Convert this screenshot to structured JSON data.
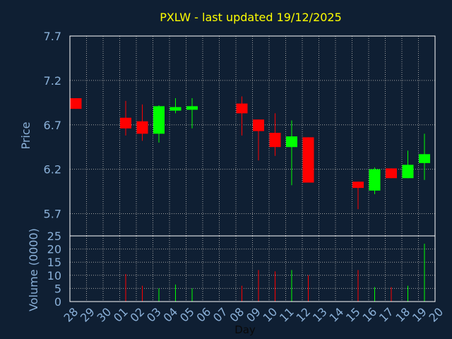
{
  "chart_data": [
    {
      "type": "candlestick",
      "title": "PXLW - last updated 19/12/2025",
      "ylabel": "Price",
      "xlabel": "Day",
      "ylim": [
        5.45,
        7.7
      ],
      "y_ticks": [
        "7.7",
        "7.2",
        "6.7",
        "6.2",
        "5.7"
      ],
      "x_ticks": [
        "28",
        "29",
        "30",
        "01",
        "02",
        "03",
        "04",
        "05",
        "06",
        "07",
        "08",
        "09",
        "10",
        "11",
        "12",
        "13",
        "14",
        "15",
        "16",
        "17",
        "18",
        "19",
        "20"
      ],
      "grid": true,
      "candles": [
        {
          "day": "28",
          "open": 7.0,
          "close": 6.88,
          "high": 7.0,
          "low": 6.88
        },
        {
          "day": "01",
          "open": 6.78,
          "close": 6.66,
          "high": 6.97,
          "low": 6.58
        },
        {
          "day": "02",
          "open": 6.74,
          "close": 6.6,
          "high": 6.93,
          "low": 6.52
        },
        {
          "day": "03",
          "open": 6.6,
          "close": 6.91,
          "high": 6.92,
          "low": 6.5
        },
        {
          "day": "04",
          "open": 6.86,
          "close": 6.9,
          "high": 7.0,
          "low": 6.83
        },
        {
          "day": "05",
          "open": 6.87,
          "close": 6.91,
          "high": 7.0,
          "low": 6.66
        },
        {
          "day": "08",
          "open": 6.94,
          "close": 6.83,
          "high": 7.02,
          "low": 6.58
        },
        {
          "day": "09",
          "open": 6.76,
          "close": 6.63,
          "high": 6.76,
          "low": 6.3
        },
        {
          "day": "10",
          "open": 6.61,
          "close": 6.45,
          "high": 6.83,
          "low": 6.35
        },
        {
          "day": "11",
          "open": 6.45,
          "close": 6.57,
          "high": 6.75,
          "low": 6.02
        },
        {
          "day": "12",
          "open": 6.56,
          "close": 6.05,
          "high": 6.56,
          "low": 6.05
        },
        {
          "day": "15",
          "open": 6.06,
          "close": 5.99,
          "high": 6.06,
          "low": 5.75
        },
        {
          "day": "16",
          "open": 5.96,
          "close": 6.2,
          "high": 6.22,
          "low": 5.92
        },
        {
          "day": "17",
          "open": 6.21,
          "close": 6.1,
          "high": 6.21,
          "low": 6.1
        },
        {
          "day": "18",
          "open": 6.1,
          "close": 6.25,
          "high": 6.41,
          "low": 6.1
        },
        {
          "day": "19",
          "open": 6.27,
          "close": 6.37,
          "high": 6.6,
          "low": 6.08
        }
      ]
    },
    {
      "type": "bar",
      "ylabel": "Volume (0000)",
      "ylim": [
        0,
        25
      ],
      "y_ticks": [
        "0",
        "5",
        "10",
        "15",
        "20",
        "25"
      ],
      "grid": true,
      "bars": [
        {
          "day": "01",
          "value": 10.5,
          "direction": "down"
        },
        {
          "day": "02",
          "value": 6.0,
          "direction": "down"
        },
        {
          "day": "03",
          "value": 5.0,
          "direction": "up"
        },
        {
          "day": "04",
          "value": 6.5,
          "direction": "up"
        },
        {
          "day": "05",
          "value": 5.0,
          "direction": "up"
        },
        {
          "day": "08",
          "value": 6.0,
          "direction": "down"
        },
        {
          "day": "09",
          "value": 12.0,
          "direction": "down"
        },
        {
          "day": "10",
          "value": 11.5,
          "direction": "down"
        },
        {
          "day": "11",
          "value": 12.0,
          "direction": "up"
        },
        {
          "day": "12",
          "value": 10.0,
          "direction": "down"
        },
        {
          "day": "15",
          "value": 12.0,
          "direction": "down"
        },
        {
          "day": "16",
          "value": 5.5,
          "direction": "up"
        },
        {
          "day": "17",
          "value": 5.5,
          "direction": "down"
        },
        {
          "day": "18",
          "value": 6.0,
          "direction": "up"
        },
        {
          "day": "19",
          "value": 22.0,
          "direction": "up"
        }
      ]
    }
  ],
  "colors": {
    "background": "#0f1f33",
    "axis_text": "#8ab0d8",
    "title": "#ffff00",
    "axis_line": "#ffffff",
    "grid": "#a0a0a0",
    "up": "#00ff00",
    "down": "#ff0000"
  }
}
